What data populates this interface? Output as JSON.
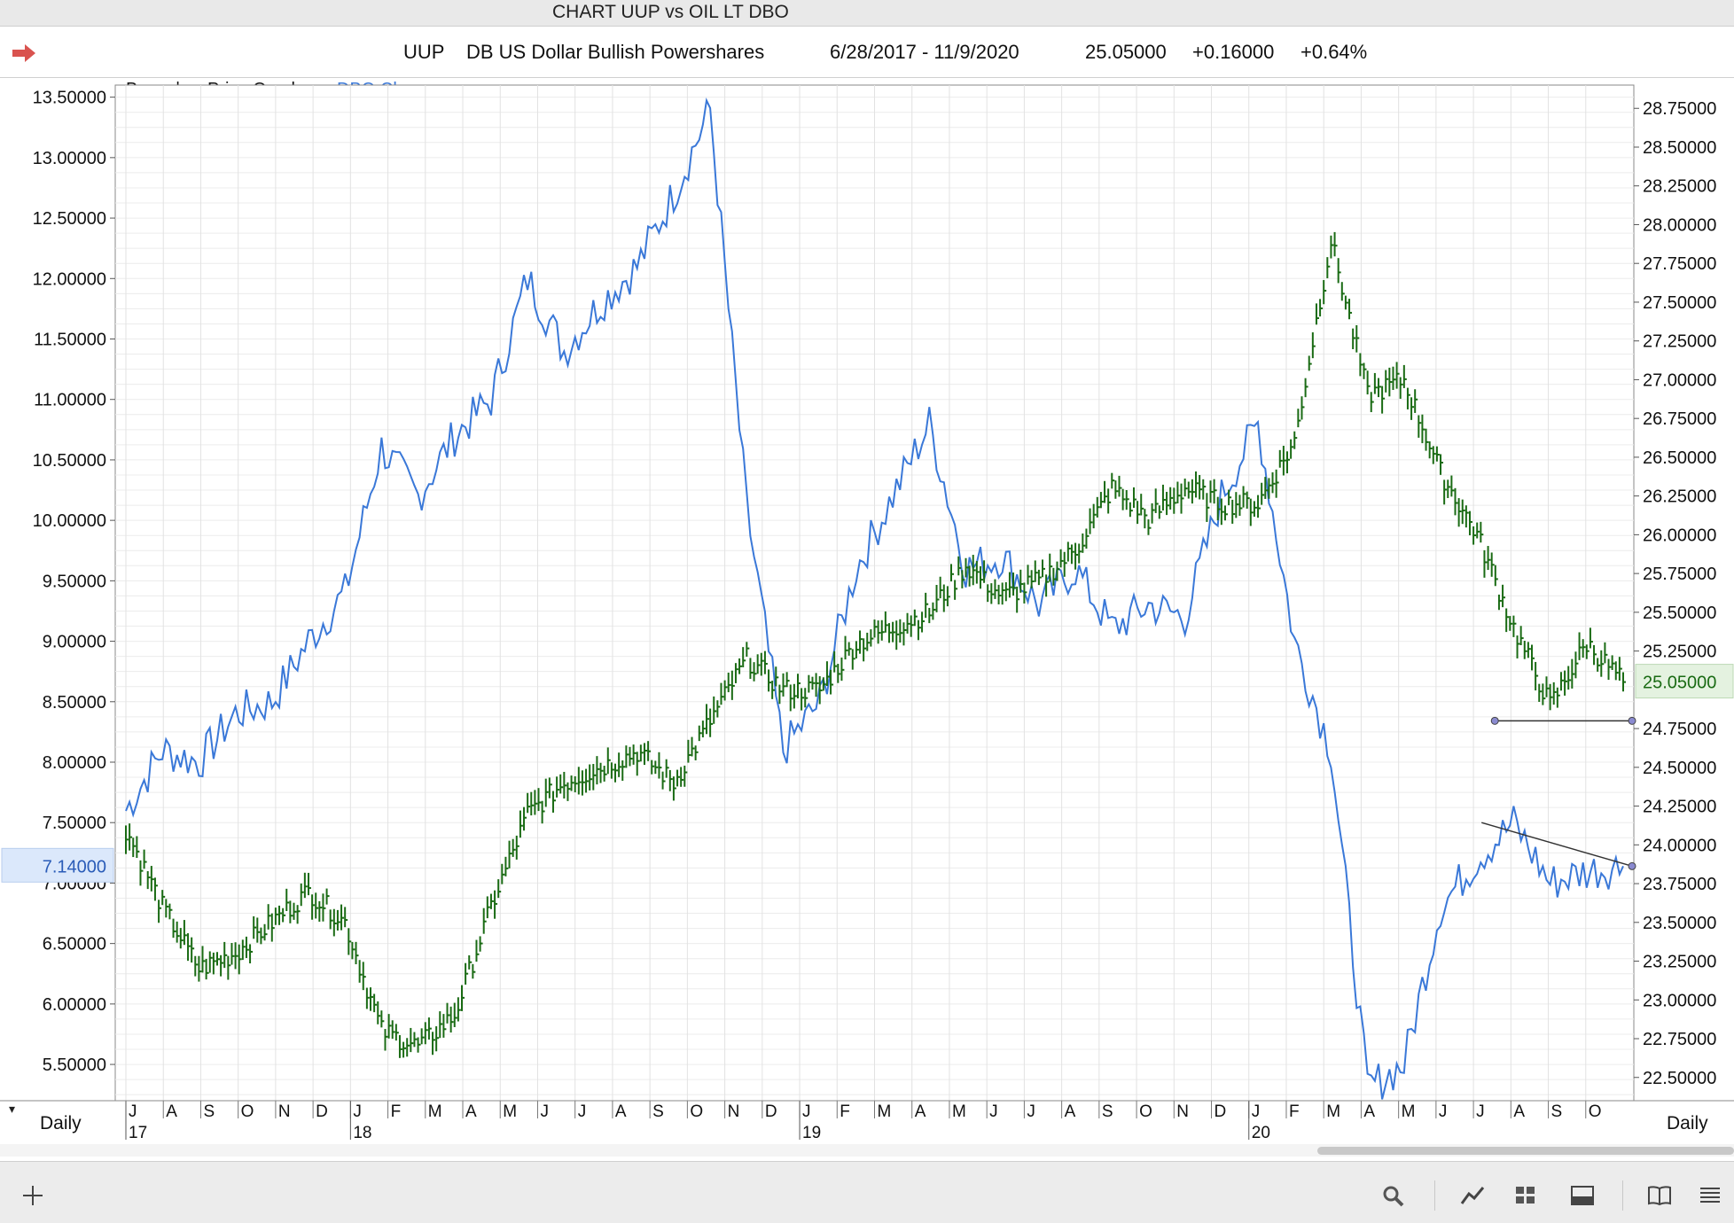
{
  "window": {
    "title": "CHART UUP vs OIL LT DBO"
  },
  "header": {
    "symbol": "UUP",
    "name": "DB US Dollar Bullish Powershares",
    "range": "6/28/2017 - 11/9/2020",
    "last": "25.05000",
    "change": "+0.16000",
    "change_pct": "+0.64%"
  },
  "overlay_info": {
    "bars_label": "Bars:",
    "bars_glyph": "|-",
    "overlay_label": "Price Overlay:",
    "overlay_name": "DBO Closes"
  },
  "left_axis": {
    "ticks": [
      "13.50000",
      "13.00000",
      "12.50000",
      "12.00000",
      "11.50000",
      "11.00000",
      "10.50000",
      "10.00000",
      "9.50000",
      "9.00000",
      "8.50000",
      "8.00000",
      "7.50000",
      "7.00000",
      "6.50000",
      "6.00000",
      "5.50000"
    ],
    "current_label": "7.14000"
  },
  "right_axis": {
    "ticks": [
      "28.75000",
      "28.50000",
      "28.25000",
      "28.00000",
      "27.75000",
      "27.50000",
      "27.25000",
      "27.00000",
      "26.75000",
      "26.50000",
      "26.25000",
      "26.00000",
      "25.75000",
      "25.50000",
      "25.25000",
      "24.75000",
      "24.50000",
      "24.25000",
      "24.00000",
      "23.75000",
      "23.50000",
      "23.25000",
      "23.00000",
      "22.75000",
      "22.50000"
    ],
    "current_label": "25.05000"
  },
  "x_axis": {
    "months": [
      "J",
      "A",
      "S",
      "O",
      "N",
      "D",
      "J",
      "F",
      "M",
      "A",
      "M",
      "J",
      "J",
      "A",
      "S",
      "O",
      "N",
      "D",
      "J",
      "F",
      "M",
      "A",
      "M",
      "J",
      "J",
      "A",
      "S",
      "O",
      "N",
      "D",
      "J",
      "F",
      "M",
      "A",
      "M",
      "J",
      "J",
      "A",
      "S",
      "O"
    ],
    "years": [
      "17",
      "18",
      "19",
      "20"
    ],
    "left_period": "Daily",
    "right_period": "Daily"
  },
  "colors": {
    "uup": "#1a6b14",
    "dbo": "#3a78d8",
    "accent": "#d9534f",
    "trend": "#333333"
  },
  "chart_data": {
    "type": "line",
    "title": "CHART UUP vs OIL LT DBO",
    "x": [
      "2017-06",
      "2017-07",
      "2017-08",
      "2017-09",
      "2017-10",
      "2017-11",
      "2017-12",
      "2018-01",
      "2018-02",
      "2018-03",
      "2018-04",
      "2018-05",
      "2018-06",
      "2018-07",
      "2018-08",
      "2018-09",
      "2018-10",
      "2018-11",
      "2018-12",
      "2019-01",
      "2019-02",
      "2019-03",
      "2019-04",
      "2019-05",
      "2019-06",
      "2019-07",
      "2019-08",
      "2019-09",
      "2019-10",
      "2019-11",
      "2019-12",
      "2020-01",
      "2020-02",
      "2020-03",
      "2020-04",
      "2020-05",
      "2020-06",
      "2020-07",
      "2020-08",
      "2020-09",
      "2020-10",
      "2020-11"
    ],
    "series": [
      {
        "name": "UUP",
        "axis": "right",
        "style": "bars",
        "values": [
          24.1,
          23.6,
          23.2,
          23.3,
          23.5,
          23.7,
          23.5,
          22.8,
          22.7,
          22.9,
          23.6,
          24.2,
          24.4,
          24.5,
          24.6,
          24.4,
          24.8,
          25.2,
          25.0,
          25.0,
          25.3,
          25.4,
          25.5,
          25.8,
          25.6,
          25.7,
          25.9,
          26.3,
          26.1,
          26.3,
          26.2,
          26.2,
          26.6,
          27.9,
          26.9,
          27.0,
          26.4,
          26.0,
          25.4,
          24.9,
          25.3,
          25.05
        ]
      },
      {
        "name": "DBO Closes",
        "axis": "left",
        "style": "line",
        "values": [
          7.6,
          8.1,
          8.0,
          8.4,
          8.5,
          9.0,
          9.4,
          10.6,
          10.2,
          10.7,
          11.0,
          12.0,
          11.4,
          11.8,
          12.1,
          12.7,
          13.4,
          10.1,
          8.1,
          8.5,
          9.6,
          10.2,
          10.8,
          9.6,
          9.7,
          9.3,
          9.6,
          9.1,
          9.3,
          9.2,
          10.2,
          10.8,
          9.0,
          8.1,
          5.3,
          5.5,
          6.8,
          7.2,
          7.5,
          7.0,
          7.1,
          7.14
        ]
      }
    ],
    "ylim_left": [
      5.2,
      13.6
    ],
    "ylim_right": [
      22.35,
      28.9
    ],
    "legend": "none",
    "grid": true
  }
}
